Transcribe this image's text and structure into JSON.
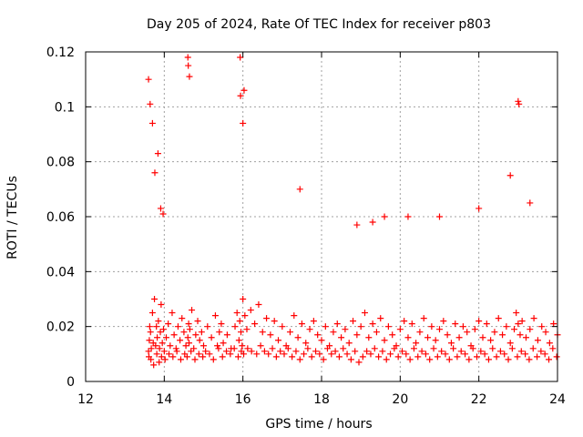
{
  "chart_data": {
    "type": "scatter",
    "title": "Day 205 of 2024, Rate Of TEC Index for receiver p803",
    "xlabel": "GPS time / hours",
    "ylabel": "ROTI / TECUs",
    "xlim": [
      12,
      24
    ],
    "ylim": [
      0,
      0.12
    ],
    "x_ticks": [
      "12",
      "14",
      "16",
      "18",
      "20",
      "22",
      "24"
    ],
    "y_ticks": [
      "0",
      "0.02",
      "0.04",
      "0.06",
      "0.08",
      "0.1",
      "0.12"
    ],
    "grid": true,
    "marker": "+",
    "color": "#ff0000",
    "series": [
      {
        "name": "ROTI",
        "x": [
          13.6,
          13.62,
          13.63,
          13.65,
          13.67,
          13.7,
          13.72,
          13.75,
          13.78,
          13.8,
          13.82,
          13.85,
          13.88,
          13.9,
          13.92,
          13.95,
          13.98,
          14.0,
          14.05,
          14.1,
          14.15,
          14.2,
          14.25,
          14.3,
          14.35,
          14.4,
          14.45,
          14.5,
          14.55,
          14.6,
          14.62,
          14.63,
          14.65,
          14.7,
          14.75,
          14.8,
          14.85,
          14.9,
          14.95,
          15.0,
          15.1,
          15.2,
          15.3,
          15.35,
          15.4,
          15.45,
          15.5,
          15.6,
          15.7,
          15.8,
          15.85,
          15.9,
          15.92,
          15.95,
          15.98,
          16.0,
          16.05,
          16.1,
          16.2,
          16.3,
          16.4,
          16.5,
          16.6,
          16.7,
          16.8,
          16.9,
          17.0,
          17.1,
          17.2,
          17.3,
          17.4,
          17.5,
          17.6,
          17.7,
          17.8,
          17.9,
          18.0,
          18.1,
          18.2,
          18.3,
          18.4,
          18.5,
          18.6,
          18.7,
          18.8,
          18.9,
          19.0,
          19.1,
          19.2,
          19.3,
          19.4,
          19.5,
          19.6,
          19.7,
          19.8,
          19.9,
          20.0,
          20.1,
          20.2,
          20.3,
          20.4,
          20.5,
          20.6,
          20.7,
          20.8,
          20.9,
          21.0,
          21.1,
          21.2,
          21.3,
          21.4,
          21.5,
          21.6,
          21.7,
          21.8,
          21.9,
          22.0,
          22.1,
          22.2,
          22.3,
          22.4,
          22.5,
          22.6,
          22.7,
          22.8,
          22.9,
          22.95,
          23.0,
          23.05,
          23.1,
          23.2,
          23.3,
          23.4,
          23.5,
          23.6,
          23.7,
          23.8,
          23.9,
          24.0,
          13.61,
          13.66,
          13.73,
          13.81,
          13.87,
          13.93,
          14.02,
          14.12,
          14.22,
          14.32,
          14.42,
          14.52,
          14.58,
          14.68,
          14.78,
          14.88,
          14.98,
          15.05,
          15.15,
          15.25,
          15.38,
          15.48,
          15.58,
          15.68,
          15.78,
          15.88,
          15.96,
          16.02,
          16.12,
          16.22,
          16.35,
          16.45,
          16.55,
          16.65,
          16.75,
          16.85,
          16.95,
          17.05,
          17.15,
          17.25,
          17.35,
          17.45,
          17.55,
          17.65,
          17.75,
          17.85,
          17.95,
          18.05,
          18.15,
          18.25,
          18.35,
          18.45,
          18.55,
          18.65,
          18.75,
          18.85,
          18.95,
          19.05,
          19.15,
          19.25,
          19.35,
          19.45,
          19.55,
          19.65,
          19.75,
          19.85,
          19.95,
          20.05,
          20.15,
          20.25,
          20.35,
          20.45,
          20.55,
          20.65,
          20.75,
          20.85,
          20.95,
          21.05,
          21.15,
          21.25,
          21.35,
          21.45,
          21.55,
          21.65,
          21.75,
          21.85,
          21.95,
          22.05,
          22.15,
          22.25,
          22.35,
          22.45,
          22.55,
          22.65,
          22.75,
          22.85,
          22.98,
          23.08,
          23.18,
          23.28,
          23.38,
          23.48,
          23.58,
          23.68,
          23.78,
          23.88,
          23.98,
          13.6,
          13.64,
          13.7,
          13.76,
          13.84,
          13.91,
          13.97,
          14.6,
          14.61,
          14.64,
          15.93,
          15.94,
          16.0,
          16.03,
          23.0,
          23.02,
          22.8,
          23.3,
          17.45,
          21.0,
          22.0,
          19.3,
          19.6,
          20.2,
          18.9
        ],
        "y": [
          0.011,
          0.015,
          0.02,
          0.018,
          0.012,
          0.025,
          0.014,
          0.03,
          0.013,
          0.02,
          0.016,
          0.022,
          0.012,
          0.018,
          0.028,
          0.014,
          0.019,
          0.011,
          0.016,
          0.021,
          0.013,
          0.025,
          0.017,
          0.012,
          0.02,
          0.015,
          0.023,
          0.018,
          0.013,
          0.016,
          0.021,
          0.014,
          0.019,
          0.026,
          0.012,
          0.017,
          0.022,
          0.015,
          0.018,
          0.013,
          0.02,
          0.016,
          0.024,
          0.013,
          0.018,
          0.021,
          0.014,
          0.017,
          0.012,
          0.02,
          0.025,
          0.015,
          0.022,
          0.018,
          0.013,
          0.03,
          0.024,
          0.019,
          0.026,
          0.021,
          0.028,
          0.018,
          0.023,
          0.017,
          0.022,
          0.015,
          0.02,
          0.013,
          0.018,
          0.024,
          0.016,
          0.021,
          0.014,
          0.019,
          0.022,
          0.017,
          0.015,
          0.02,
          0.013,
          0.018,
          0.021,
          0.016,
          0.019,
          0.014,
          0.022,
          0.017,
          0.02,
          0.025,
          0.016,
          0.021,
          0.018,
          0.023,
          0.015,
          0.02,
          0.017,
          0.013,
          0.019,
          0.022,
          0.016,
          0.021,
          0.014,
          0.018,
          0.023,
          0.016,
          0.02,
          0.015,
          0.019,
          0.022,
          0.017,
          0.014,
          0.021,
          0.016,
          0.02,
          0.018,
          0.013,
          0.019,
          0.022,
          0.016,
          0.021,
          0.015,
          0.018,
          0.023,
          0.017,
          0.02,
          0.014,
          0.019,
          0.025,
          0.021,
          0.017,
          0.022,
          0.016,
          0.019,
          0.023,
          0.015,
          0.02,
          0.018,
          0.014,
          0.021,
          0.017,
          0.009,
          0.008,
          0.006,
          0.01,
          0.007,
          0.009,
          0.008,
          0.01,
          0.009,
          0.011,
          0.008,
          0.01,
          0.009,
          0.011,
          0.008,
          0.01,
          0.009,
          0.011,
          0.01,
          0.008,
          0.012,
          0.009,
          0.011,
          0.01,
          0.012,
          0.009,
          0.011,
          0.01,
          0.012,
          0.011,
          0.01,
          0.013,
          0.011,
          0.01,
          0.012,
          0.009,
          0.011,
          0.01,
          0.012,
          0.009,
          0.011,
          0.008,
          0.01,
          0.012,
          0.009,
          0.011,
          0.01,
          0.008,
          0.012,
          0.01,
          0.011,
          0.009,
          0.012,
          0.01,
          0.008,
          0.011,
          0.007,
          0.009,
          0.011,
          0.01,
          0.012,
          0.009,
          0.011,
          0.008,
          0.01,
          0.012,
          0.009,
          0.011,
          0.01,
          0.008,
          0.012,
          0.009,
          0.011,
          0.01,
          0.008,
          0.012,
          0.009,
          0.011,
          0.01,
          0.008,
          0.012,
          0.009,
          0.011,
          0.01,
          0.008,
          0.012,
          0.009,
          0.011,
          0.01,
          0.008,
          0.012,
          0.009,
          0.011,
          0.01,
          0.008,
          0.012,
          0.009,
          0.011,
          0.01,
          0.008,
          0.012,
          0.009,
          0.011,
          0.01,
          0.008,
          0.012,
          0.009,
          0.11,
          0.101,
          0.094,
          0.076,
          0.083,
          0.063,
          0.061,
          0.118,
          0.115,
          0.111,
          0.118,
          0.104,
          0.094,
          0.106,
          0.102,
          0.101,
          0.075,
          0.065,
          0.07,
          0.06,
          0.063,
          0.058,
          0.06,
          0.06,
          0.057
        ]
      }
    ]
  }
}
